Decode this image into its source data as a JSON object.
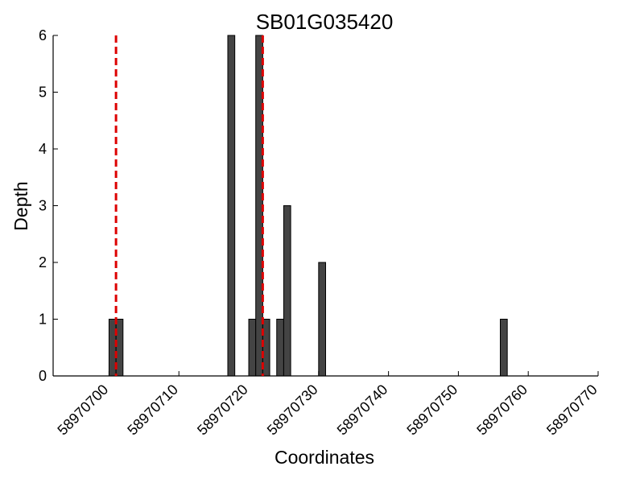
{
  "chart_data": {
    "type": "bar",
    "title": "SB01G035420",
    "xlabel": "Coordinates",
    "ylabel": "Depth",
    "xlim": [
      58970692,
      58970770
    ],
    "ylim": [
      0,
      6
    ],
    "xticks": [
      58970700,
      58970710,
      58970720,
      58970730,
      58970740,
      58970750,
      58970760,
      58970770
    ],
    "yticks": [
      0,
      1,
      2,
      3,
      4,
      5,
      6
    ],
    "bar_width": 1,
    "bar_color": "#444444",
    "bars": [
      {
        "x": 58970700,
        "depth": 1
      },
      {
        "x": 58970701,
        "depth": 1
      },
      {
        "x": 58970717,
        "depth": 6
      },
      {
        "x": 58970720,
        "depth": 1
      },
      {
        "x": 58970721,
        "depth": 6
      },
      {
        "x": 58970722,
        "depth": 1
      },
      {
        "x": 58970724,
        "depth": 1
      },
      {
        "x": 58970725,
        "depth": 3
      },
      {
        "x": 58970730,
        "depth": 2
      },
      {
        "x": 58970756,
        "depth": 1
      }
    ],
    "reference_lines": [
      {
        "x": 58970701,
        "color": "#dd0000",
        "style": "dashed"
      },
      {
        "x": 58970722,
        "color": "#dd0000",
        "style": "dashed"
      }
    ],
    "grid": false,
    "legend": "none"
  }
}
